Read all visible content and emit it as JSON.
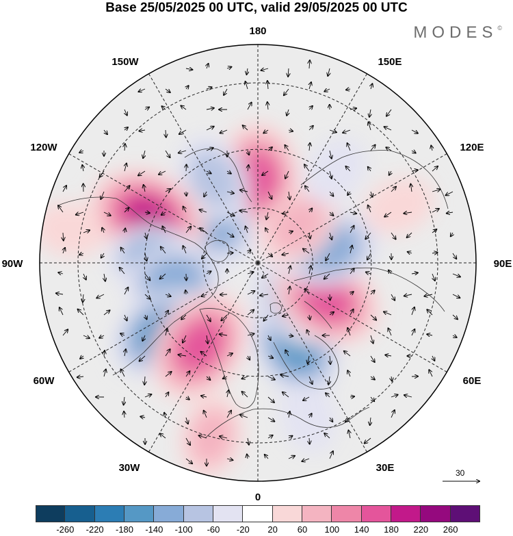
{
  "title": "Base 25/05/2025 00 UTC, valid 29/05/2025 00 UTC",
  "brand": "MODES",
  "brand_mark": "©",
  "longitude_labels": [
    "180",
    "150E",
    "120E",
    "90E",
    "60E",
    "30E",
    "0",
    "30W",
    "60W",
    "90W",
    "120W",
    "150W"
  ],
  "reference_vector": {
    "label": "30",
    "value": 30
  },
  "colorbar": {
    "colors": [
      "#0e3d5e",
      "#175f8f",
      "#2c7db4",
      "#5598c5",
      "#87abd7",
      "#b7c4e2",
      "#e3e3f2",
      "#ffffff",
      "#f9d8d8",
      "#f4b4c1",
      "#ee86a8",
      "#e4559b",
      "#c2198a",
      "#95097e",
      "#5e0f76"
    ],
    "ticks": [
      "-260",
      "-220",
      "-180",
      "-140",
      "-100",
      "-60",
      "-20",
      "20",
      "60",
      "100",
      "140",
      "180",
      "220",
      "260"
    ]
  },
  "anomaly_centers": [
    {
      "lon": 180,
      "colat": 30,
      "value": 160
    },
    {
      "lon": 228,
      "colat": 22,
      "value": -110
    },
    {
      "lon": 208,
      "colat": 34,
      "value": -90
    },
    {
      "lon": 247,
      "colat": 42,
      "value": 180
    },
    {
      "lon": 268,
      "colat": 37,
      "value": -100
    },
    {
      "lon": 282,
      "colat": 31,
      "value": -120
    },
    {
      "lon": 306,
      "colat": 42,
      "value": -140
    },
    {
      "lon": 325,
      "colat": 36,
      "value": 170
    },
    {
      "lon": 25,
      "colat": 32,
      "value": -160
    },
    {
      "lon": 45,
      "colat": 20,
      "value": -120
    },
    {
      "lon": 62,
      "colat": 28,
      "value": 160
    },
    {
      "lon": 102,
      "colat": 26,
      "value": -130
    },
    {
      "lon": 133,
      "colat": 20,
      "value": 90
    },
    {
      "lon": 140,
      "colat": 42,
      "value": -40
    },
    {
      "lon": 112,
      "colat": 52,
      "value": 40
    },
    {
      "lon": 260,
      "colat": 63,
      "value": 40
    },
    {
      "lon": 345,
      "colat": 60,
      "value": 70
    },
    {
      "lon": 18,
      "colat": 55,
      "value": -40
    }
  ]
}
